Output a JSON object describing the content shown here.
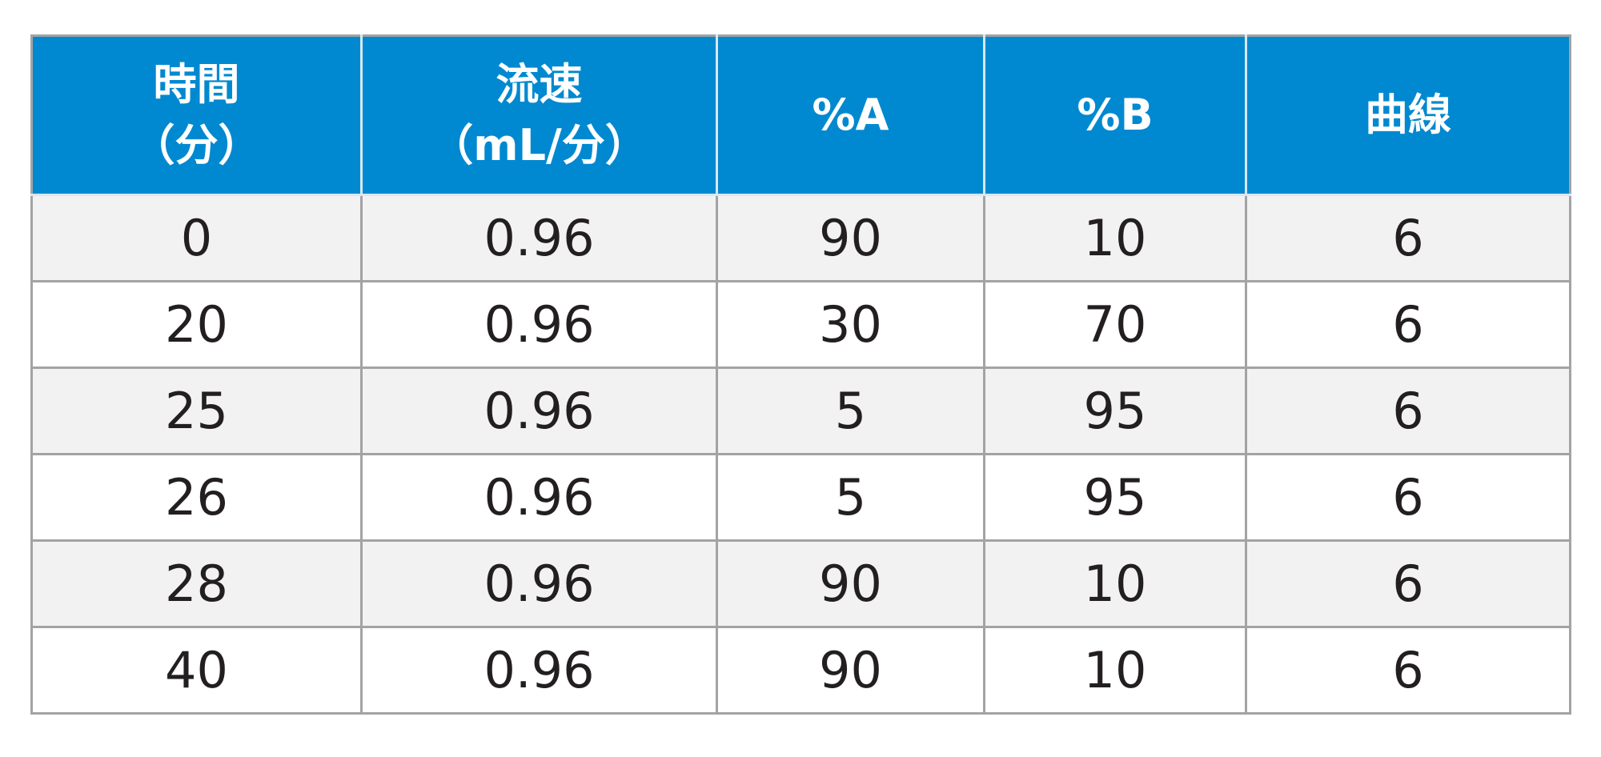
{
  "table": {
    "headers": [
      [
        "時間",
        "（分）"
      ],
      [
        "流速",
        "（mL/分）"
      ],
      [
        "%A"
      ],
      [
        "%B"
      ],
      [
        "曲線"
      ]
    ],
    "rows": [
      [
        "0",
        "0.96",
        "90",
        "10",
        "6"
      ],
      [
        "20",
        "0.96",
        "30",
        "70",
        "6"
      ],
      [
        "25",
        "0.96",
        "5",
        "95",
        "6"
      ],
      [
        "26",
        "0.96",
        "5",
        "95",
        "6"
      ],
      [
        "28",
        "0.96",
        "90",
        "10",
        "6"
      ],
      [
        "40",
        "0.96",
        "90",
        "10",
        "6"
      ]
    ]
  }
}
